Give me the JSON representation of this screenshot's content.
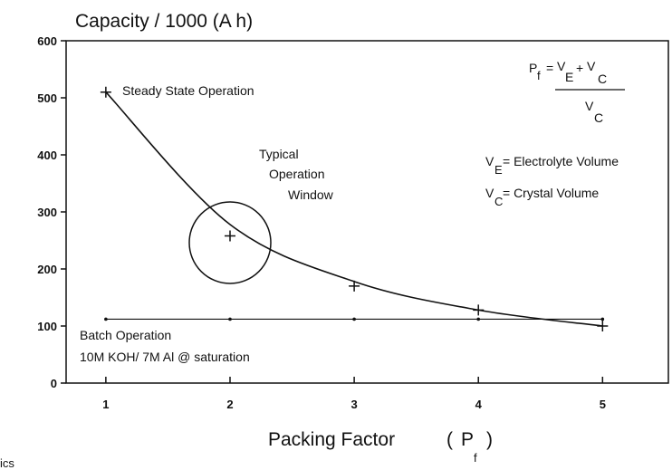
{
  "chart_data": {
    "type": "line",
    "title": "Capacity / 1000 (A h)",
    "xlabel": "Packing Factor",
    "xlabel_symbol": {
      "open": "(",
      "symbol": "P",
      "sub": "f",
      "close": ")"
    },
    "x": [
      1,
      2,
      3,
      4,
      5
    ],
    "xlim": [
      0.68,
      5.53
    ],
    "xticks": [
      1,
      2,
      3,
      4,
      5
    ],
    "ylim": [
      0,
      600
    ],
    "yticks": [
      0,
      100,
      200,
      300,
      400,
      500,
      600
    ],
    "series": [
      {
        "color": "#111111",
        "style": "curve",
        "values": [
          510,
          278,
          178,
          128,
          100
        ]
      },
      {
        "color": "#111111",
        "style": "plus",
        "values": [
          510,
          258,
          170,
          128,
          100
        ]
      },
      {
        "color": "#111111",
        "style": "flat",
        "values": [
          112,
          112,
          112,
          112,
          112
        ]
      }
    ],
    "annotations": {
      "steady": "Steady State Operation",
      "typical": [
        "Typical",
        "Operation",
        "Window"
      ],
      "batch": "Batch Operation",
      "batch_note": "10M KOH/ 7M Al @ saturation"
    },
    "formula": {
      "lhs": "P",
      "lhs_sub": "f",
      "eq": "=",
      "num": "V",
      "num_sub": "E",
      "plus": "+",
      "num2": "V",
      "num2_sub": "C",
      "den": "V",
      "den_sub": "C"
    },
    "definitions": [
      {
        "symbol": "V",
        "sub": "E",
        "text": "= Electrolyte Volume"
      },
      {
        "symbol": "V",
        "sub": "C",
        "text": "= Crystal Volume"
      }
    ],
    "fragment": "ics"
  }
}
